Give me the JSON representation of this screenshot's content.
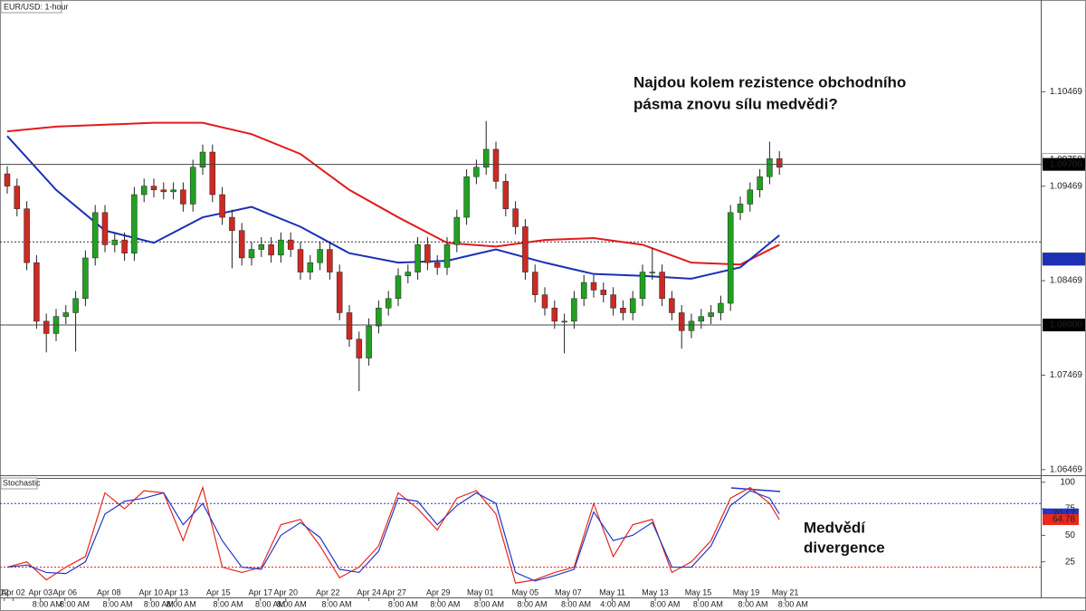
{
  "chart_data": [
    {
      "type": "candlestick",
      "title": "EUR/USD: 1-hour",
      "annotation": [
        "Najdou kolem rezistence obchodního",
        "pásma znovu sílu medvědi?"
      ],
      "xlim": [
        -0.74,
        105.74
      ],
      "ylim": [
        1.0641,
        1.1144
      ],
      "yticks": [
        1.10469,
        1.09469,
        1.08469,
        1.07469,
        1.06469
      ],
      "up_color": "#22a022",
      "down_color": "#cc2a24",
      "x": [
        0,
        1,
        2,
        3,
        4,
        5,
        6,
        7,
        8,
        9,
        10,
        11,
        12,
        13,
        14,
        15,
        16,
        17,
        18,
        19,
        20,
        21,
        22,
        23,
        24,
        25,
        26,
        27,
        28,
        29,
        30,
        31,
        32,
        33,
        34,
        35,
        36,
        37,
        38,
        39,
        40,
        41,
        42,
        43,
        44,
        45,
        46,
        47,
        48,
        49,
        50,
        51,
        52,
        53,
        54,
        55,
        56,
        57,
        58,
        59,
        60,
        61,
        62,
        63,
        64,
        65,
        66,
        67,
        68,
        69,
        70,
        71,
        72,
        73,
        74,
        75,
        76,
        77,
        78,
        79
      ],
      "open": [
        1.096,
        1.0947,
        1.0923,
        1.0866,
        1.0804,
        1.0791,
        1.0809,
        1.0813,
        1.0828,
        1.0871,
        1.0919,
        1.0885,
        1.089,
        1.0876,
        1.0938,
        1.0947,
        1.0943,
        1.0941,
        1.0943,
        1.0928,
        1.0967,
        1.0983,
        1.0938,
        1.0914,
        1.09,
        1.0871,
        1.088,
        1.0885,
        1.0874,
        1.089,
        1.088,
        1.0856,
        1.0866,
        1.088,
        1.0856,
        1.0813,
        1.0785,
        1.0765,
        1.0799,
        1.0818,
        1.0828,
        1.0852,
        1.0856,
        1.0885,
        1.0866,
        1.0861,
        1.0885,
        1.0914,
        1.0957,
        1.0967,
        1.0986,
        1.0952,
        1.0923,
        1.0904,
        1.0856,
        1.0832,
        1.0818,
        1.0804,
        1.0804,
        1.0828,
        1.0845,
        1.0837,
        1.0832,
        1.0818,
        1.0813,
        1.0828,
        1.0856,
        1.0856,
        1.0828,
        1.0813,
        1.0794,
        1.0804,
        1.0809,
        1.0813,
        1.0823,
        1.0919,
        1.0928,
        1.0943,
        1.0957,
        1.0976
      ],
      "high": [
        1.0968,
        1.0955,
        1.0931,
        1.0874,
        1.0812,
        1.0817,
        1.0821,
        1.0836,
        1.0879,
        1.0927,
        1.0927,
        1.0898,
        1.0898,
        1.0946,
        1.0955,
        1.0955,
        1.0951,
        1.0951,
        1.0951,
        1.0975,
        1.0991,
        1.0991,
        1.0946,
        1.0922,
        1.0908,
        1.0888,
        1.0893,
        1.0893,
        1.0898,
        1.0898,
        1.0888,
        1.0874,
        1.0888,
        1.0888,
        1.0864,
        1.0821,
        1.0793,
        1.0807,
        1.0826,
        1.0836,
        1.086,
        1.0864,
        1.0893,
        1.0893,
        1.0874,
        1.0893,
        1.0922,
        1.0965,
        1.0975,
        1.1016,
        1.0994,
        1.096,
        1.0931,
        1.0912,
        1.0864,
        1.084,
        1.0826,
        1.0812,
        1.0836,
        1.0853,
        1.0853,
        1.0845,
        1.084,
        1.0826,
        1.0836,
        1.0864,
        1.0882,
        1.0864,
        1.0836,
        1.0821,
        1.0812,
        1.0817,
        1.0821,
        1.0831,
        1.0927,
        1.0936,
        1.0951,
        1.0965,
        1.0994,
        1.0984
      ],
      "low": [
        1.0939,
        1.0915,
        1.0858,
        1.0796,
        1.0771,
        1.0783,
        1.0801,
        1.0772,
        1.082,
        1.0863,
        1.0877,
        1.0877,
        1.0868,
        1.0868,
        1.093,
        1.0935,
        1.0933,
        1.0933,
        1.092,
        1.092,
        1.0959,
        1.093,
        1.0906,
        1.086,
        1.0863,
        1.0863,
        1.0872,
        1.0866,
        1.0866,
        1.0872,
        1.0848,
        1.0848,
        1.0858,
        1.0848,
        1.0805,
        1.0777,
        1.073,
        1.0757,
        1.0791,
        1.081,
        1.082,
        1.0844,
        1.0848,
        1.0858,
        1.0853,
        1.0853,
        1.0877,
        1.0906,
        1.0949,
        1.0959,
        1.0944,
        1.0915,
        1.0896,
        1.0848,
        1.0824,
        1.081,
        1.0796,
        1.077,
        1.0796,
        1.082,
        1.0829,
        1.0824,
        1.081,
        1.0805,
        1.0805,
        1.082,
        1.0848,
        1.082,
        1.0805,
        1.0775,
        1.0786,
        1.0796,
        1.0801,
        1.0805,
        1.0815,
        1.0911,
        1.092,
        1.0935,
        1.0949,
        1.0959
      ],
      "close": [
        1.0947,
        1.0923,
        1.0866,
        1.0804,
        1.0791,
        1.0809,
        1.0813,
        1.0828,
        1.0871,
        1.0919,
        1.0885,
        1.089,
        1.0876,
        1.0938,
        1.0947,
        1.0943,
        1.0941,
        1.0943,
        1.0928,
        1.0967,
        1.0983,
        1.0938,
        1.0914,
        1.09,
        1.0871,
        1.088,
        1.0885,
        1.0874,
        1.089,
        1.088,
        1.0856,
        1.0866,
        1.088,
        1.0856,
        1.0813,
        1.0785,
        1.0765,
        1.0799,
        1.0818,
        1.0828,
        1.0852,
        1.0856,
        1.0885,
        1.0866,
        1.0861,
        1.0885,
        1.0914,
        1.0957,
        1.0967,
        1.0986,
        1.0952,
        1.0923,
        1.0904,
        1.0856,
        1.0832,
        1.0818,
        1.0804,
        1.0804,
        1.0828,
        1.0845,
        1.0837,
        1.0832,
        1.0818,
        1.0813,
        1.0828,
        1.0856,
        1.0856,
        1.0828,
        1.0813,
        1.0794,
        1.0804,
        1.0809,
        1.0813,
        1.0823,
        1.0919,
        1.0928,
        1.0943,
        1.0957,
        1.0976,
        1.0967
      ],
      "series": [
        {
          "color": "#e31a1c",
          "x": [
            0,
            5,
            10,
            15,
            20,
            25,
            30,
            35,
            40,
            45,
            50,
            55,
            60,
            65,
            70,
            75,
            79
          ],
          "values": [
            1.1005,
            1.101,
            1.1012,
            1.1014,
            1.1014,
            1.1002,
            1.0981,
            1.0943,
            1.0914,
            1.0887,
            1.0883,
            1.089,
            1.0892,
            1.0885,
            1.0866,
            1.0864,
            1.0885
          ]
        },
        {
          "color": "#1c2fb5",
          "x": [
            0,
            5,
            10,
            15,
            20,
            25,
            30,
            35,
            40,
            45,
            50,
            55,
            60,
            65,
            70,
            75,
            79
          ],
          "values": [
            1.1,
            1.0943,
            1.09,
            1.0887,
            1.0914,
            1.0925,
            1.0904,
            1.0876,
            1.0866,
            1.0868,
            1.088,
            1.0866,
            1.0854,
            1.0852,
            1.0849,
            1.0861,
            1.0895
          ]
        }
      ],
      "levels": [
        {
          "value": 1.097,
          "label": "1.09700"
        },
        {
          "value": 1.08,
          "label": "1.08000"
        }
      ],
      "dotted_level": 1.0888,
      "price_tags": [
        {
          "value": 1.0975,
          "label": "1.09750",
          "color": "#ffffff"
        },
        {
          "value": 1.08698,
          "color": "#1c2fb5"
        }
      ]
    },
    {
      "type": "line",
      "title": "Stochastic",
      "annotation": [
        "Medvědí",
        "divergence"
      ],
      "xlim": [
        -0.74,
        105.74
      ],
      "ylim": [
        0,
        104.9
      ],
      "yticks": [
        100,
        75,
        50,
        25
      ],
      "levels": [
        {
          "value": 80,
          "color": "#2336c9"
        },
        {
          "value": 20,
          "color": "#e8291c"
        }
      ],
      "x": [
        0,
        2,
        4,
        6,
        8,
        10,
        12,
        14,
        16,
        18,
        20,
        22,
        24,
        26,
        28,
        30,
        32,
        34,
        36,
        38,
        40,
        42,
        44,
        46,
        48,
        50,
        52,
        54,
        56,
        58,
        60,
        62,
        64,
        66,
        68,
        70,
        72,
        74,
        76,
        78,
        79
      ],
      "series": [
        {
          "color": "#e8291c",
          "values": [
            20,
            25,
            8,
            20,
            30,
            90,
            75,
            92,
            90,
            45,
            95,
            20,
            15,
            20,
            60,
            65,
            40,
            10,
            20,
            40,
            90,
            75,
            55,
            85,
            92,
            70,
            5,
            8,
            15,
            20,
            80,
            30,
            60,
            65,
            15,
            25,
            45,
            85,
            95,
            80,
            64.78
          ]
        },
        {
          "color": "#2336c9",
          "values": [
            20,
            22,
            15,
            14,
            25,
            70,
            82,
            85,
            90,
            60,
            80,
            45,
            20,
            18,
            50,
            62,
            48,
            18,
            15,
            35,
            85,
            82,
            60,
            78,
            90,
            80,
            15,
            7,
            12,
            18,
            72,
            45,
            50,
            62,
            20,
            20,
            40,
            78,
            92,
            85,
            70.17
          ]
        }
      ],
      "xticks": [
        {
          "value": -0.3,
          "label": "12"
        },
        {
          "value": 0.6,
          "label": "Apr 02"
        },
        {
          "value": 3.4,
          "label": "Apr 03"
        },
        {
          "value": 5.9,
          "label": "Apr 06"
        },
        {
          "value": 10.4,
          "label": "Apr 08"
        },
        {
          "value": 14.7,
          "label": "Apr 10"
        },
        {
          "value": 17.3,
          "label": "Apr 13"
        },
        {
          "value": 21.6,
          "label": "Apr 15"
        },
        {
          "value": 25.9,
          "label": "Apr 17"
        },
        {
          "value": 28.5,
          "label": "Apr 20"
        },
        {
          "value": 32.8,
          "label": "Apr 22"
        },
        {
          "value": 37.0,
          "label": "Apr 24"
        },
        {
          "value": 39.6,
          "label": "Apr 27"
        },
        {
          "value": 44.1,
          "label": "Apr 29"
        },
        {
          "value": 48.4,
          "label": "May 01"
        },
        {
          "value": 53.0,
          "label": "May 05"
        },
        {
          "value": 57.4,
          "label": "May 07"
        },
        {
          "value": 61.9,
          "label": "May 11"
        },
        {
          "value": 66.3,
          "label": "May 13"
        },
        {
          "value": 70.7,
          "label": "May 15"
        },
        {
          "value": 75.6,
          "label": "May 19"
        },
        {
          "value": 79.6,
          "label": "May 21"
        }
      ],
      "time_ticks": [
        {
          "value": 4.1,
          "label": "8:00 AM"
        },
        {
          "value": 6.9,
          "label": "8:00 AM"
        },
        {
          "value": 11.3,
          "label": "8:00 AM"
        },
        {
          "value": 15.5,
          "label": "8:00 AM"
        },
        {
          "value": 17.8,
          "label": "8:00 AM"
        },
        {
          "value": 22.6,
          "label": "8:00 AM"
        },
        {
          "value": 26.9,
          "label": "8:00 AM"
        },
        {
          "value": 29.1,
          "label": "8:00 AM"
        },
        {
          "value": 33.7,
          "label": "8:00 AM"
        },
        {
          "value": 40.5,
          "label": "8:00 AM"
        },
        {
          "value": 44.8,
          "label": "8:00 AM"
        },
        {
          "value": 49.3,
          "label": "8:00 AM"
        },
        {
          "value": 53.7,
          "label": "8:00 AM"
        },
        {
          "value": 58.2,
          "label": "8:00 AM"
        },
        {
          "value": 62.2,
          "label": "4:00 AM"
        },
        {
          "value": 67.3,
          "label": "8:00 AM"
        },
        {
          "value": 71.7,
          "label": "8:00 AM"
        },
        {
          "value": 76.3,
          "label": "8:00 AM"
        },
        {
          "value": 80.4,
          "label": "8:00 AM"
        }
      ]
    }
  ]
}
